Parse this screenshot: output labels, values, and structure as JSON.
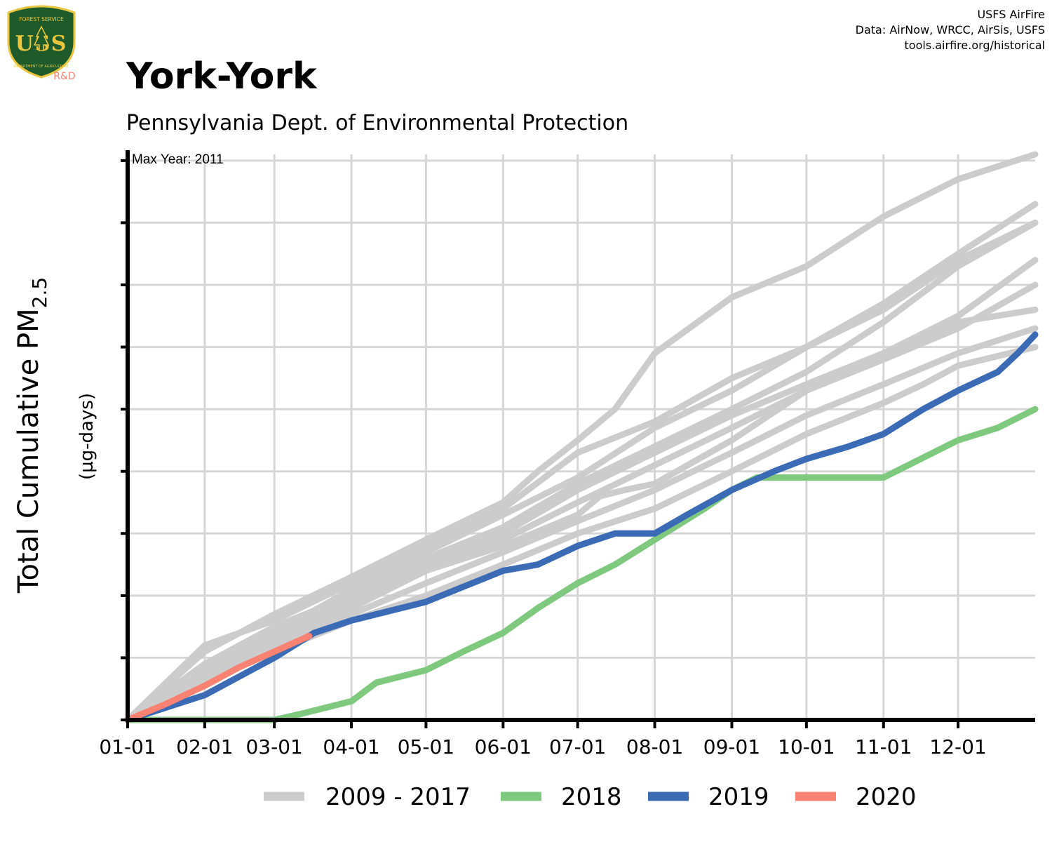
{
  "logo": {
    "top_text": "FOREST SERVICE",
    "letters": "USS",
    "bottom_text": "DEPARTMENT OF AGRICULTURE",
    "badge": "R&D"
  },
  "credits": [
    "USFS AirFire",
    "Data: AirNow, WRCC, AirSis, USFS",
    "tools.airfire.org/historical"
  ],
  "colors": {
    "historical": "#cccccc",
    "y2018": "#7ec97e",
    "y2019": "#3a6bb4",
    "y2020": "#f98272",
    "badge": "#f98272",
    "shield_green": "#1f5a2a",
    "shield_gold": "#e8c640"
  },
  "chart_data": {
    "type": "line",
    "title": "York-York",
    "subtitle": "Pennsylvania Dept. of Environmental Protection",
    "annotation": "Max Year: 2011",
    "ylabel_main": "Total Cumulative PM",
    "ylabel_sub": "2.5",
    "ylabel_units": "(µg-days)",
    "x_ticks": [
      "01-01",
      "02-01",
      "03-01",
      "04-01",
      "05-01",
      "06-01",
      "07-01",
      "08-01",
      "09-01",
      "10-01",
      "11-01",
      "12-01"
    ],
    "x_tick_days": [
      0,
      31,
      59,
      90,
      120,
      151,
      181,
      212,
      243,
      273,
      304,
      334
    ],
    "xlim": [
      0,
      365
    ],
    "ylim": [
      0,
      9.1
    ],
    "y_gridlines": [
      0,
      1,
      2,
      3,
      4,
      5,
      6,
      7,
      8,
      9
    ],
    "grid": true,
    "legend_position": "bottom",
    "legend": [
      {
        "label": "2009 - 2017",
        "color": "#cccccc"
      },
      {
        "label": "2018",
        "color": "#7ec97e"
      },
      {
        "label": "2019",
        "color": "#3a6bb4"
      },
      {
        "label": "2020",
        "color": "#f98272"
      }
    ],
    "series": [
      {
        "group": "historical",
        "x": [
          0,
          31,
          59,
          90,
          120,
          151,
          165,
          181,
          196,
          212,
          243,
          273,
          304,
          334,
          365
        ],
        "y": [
          0,
          1.1,
          1.7,
          2.3,
          2.9,
          3.5,
          4.0,
          4.5,
          5.0,
          5.9,
          6.8,
          7.3,
          8.1,
          8.7,
          9.1
        ]
      },
      {
        "group": "historical",
        "x": [
          0,
          31,
          59,
          90,
          120,
          151,
          181,
          212,
          243,
          273,
          304,
          334,
          365
        ],
        "y": [
          0,
          1.2,
          1.6,
          2.2,
          2.8,
          3.4,
          4.3,
          4.8,
          5.5,
          6.0,
          6.7,
          7.5,
          8.3
        ]
      },
      {
        "group": "historical",
        "x": [
          0,
          31,
          59,
          90,
          120,
          151,
          181,
          212,
          243,
          273,
          304,
          334,
          365
        ],
        "y": [
          0,
          0.8,
          1.4,
          2.1,
          2.7,
          3.3,
          3.9,
          4.7,
          5.3,
          6.0,
          6.6,
          7.4,
          8.0
        ]
      },
      {
        "group": "historical",
        "x": [
          0,
          31,
          59,
          90,
          120,
          151,
          181,
          212,
          243,
          273,
          304,
          334,
          365
        ],
        "y": [
          0,
          0.9,
          1.5,
          2.0,
          2.6,
          3.1,
          3.8,
          4.4,
          5.0,
          5.6,
          6.4,
          7.3,
          8.0
        ]
      },
      {
        "group": "historical",
        "x": [
          0,
          31,
          59,
          90,
          120,
          151,
          181,
          212,
          243,
          273,
          304,
          334,
          365
        ],
        "y": [
          0,
          0.8,
          1.3,
          1.9,
          2.5,
          3.0,
          3.7,
          4.3,
          4.9,
          5.4,
          5.9,
          6.5,
          7.4
        ]
      },
      {
        "group": "historical",
        "x": [
          0,
          31,
          59,
          90,
          120,
          151,
          181,
          212,
          243,
          273,
          304,
          334,
          365
        ],
        "y": [
          0,
          0.7,
          1.3,
          1.8,
          2.4,
          2.9,
          3.5,
          4.1,
          4.7,
          5.3,
          5.8,
          6.3,
          7.0
        ]
      },
      {
        "group": "historical",
        "x": [
          0,
          31,
          59,
          90,
          120,
          151,
          181,
          190,
          200,
          212,
          243,
          273,
          304,
          334,
          365
        ],
        "y": [
          0,
          0.8,
          1.4,
          1.9,
          2.4,
          2.8,
          3.3,
          3.6,
          3.7,
          3.8,
          4.5,
          5.3,
          5.9,
          6.4,
          6.6
        ]
      },
      {
        "group": "historical",
        "x": [
          0,
          31,
          59,
          90,
          120,
          151,
          181,
          212,
          243,
          273,
          304,
          334,
          365
        ],
        "y": [
          0,
          0.7,
          1.2,
          1.7,
          2.2,
          2.7,
          3.2,
          3.7,
          4.3,
          4.9,
          5.4,
          5.9,
          6.3
        ]
      },
      {
        "group": "historical",
        "x": [
          0,
          31,
          59,
          90,
          120,
          151,
          181,
          212,
          243,
          273,
          304,
          320,
          334,
          365
        ],
        "y": [
          0,
          0.6,
          1.1,
          1.6,
          2.0,
          2.5,
          3.0,
          3.4,
          4.0,
          4.6,
          5.1,
          5.4,
          5.7,
          6.0
        ]
      },
      {
        "name": "2018",
        "group": "y2018",
        "x": [
          0,
          31,
          59,
          70,
          90,
          100,
          120,
          135,
          151,
          165,
          181,
          196,
          212,
          232,
          243,
          253,
          263,
          273,
          290,
          304,
          334,
          350,
          365
        ],
        "y": [
          0,
          0,
          0,
          0.1,
          0.3,
          0.6,
          0.8,
          1.1,
          1.4,
          1.8,
          2.2,
          2.5,
          2.9,
          3.4,
          3.7,
          3.9,
          3.9,
          3.9,
          3.9,
          3.9,
          4.5,
          4.7,
          5.0
        ]
      },
      {
        "name": "2019",
        "group": "y2019",
        "x": [
          0,
          31,
          59,
          75,
          90,
          120,
          151,
          165,
          181,
          196,
          212,
          225,
          243,
          260,
          273,
          290,
          304,
          320,
          334,
          350,
          358,
          365
        ],
        "y": [
          0,
          0.4,
          1.0,
          1.4,
          1.6,
          1.9,
          2.4,
          2.5,
          2.8,
          3.0,
          3.0,
          3.3,
          3.7,
          4.0,
          4.2,
          4.4,
          4.6,
          5.0,
          5.3,
          5.6,
          5.9,
          6.2
        ]
      },
      {
        "name": "2020",
        "group": "y2020",
        "x": [
          0,
          15,
          31,
          45,
          59,
          73
        ],
        "y": [
          0,
          0.25,
          0.55,
          0.85,
          1.1,
          1.35
        ]
      }
    ]
  }
}
